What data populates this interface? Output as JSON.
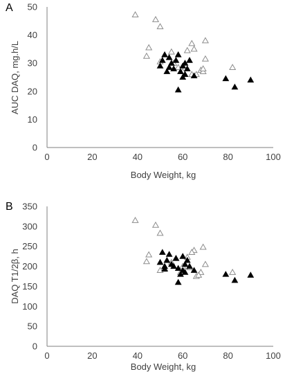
{
  "chart_data": [
    {
      "type": "scatter",
      "panel_label": "A",
      "xlabel": "Body Weight, kg",
      "ylabel": "AUC DAQ, mg.h/L",
      "xlim": [
        0,
        100
      ],
      "ylim": [
        0,
        50
      ],
      "x_ticks": [
        "0",
        "20",
        "40",
        "60",
        "80",
        "100"
      ],
      "y_ticks": [
        "0",
        "10",
        "20",
        "30",
        "40",
        "50"
      ],
      "grid": false,
      "series": [
        {
          "marker": "open-triangle",
          "color": "#8c8c8c",
          "points": [
            [
              39,
              47.2
            ],
            [
              45,
              35.5
            ],
            [
              48,
              45.5
            ],
            [
              50,
              43
            ],
            [
              44,
              32.5
            ],
            [
              50,
              30.5
            ],
            [
              55,
              34
            ],
            [
              56,
              30
            ],
            [
              58,
              28.5
            ],
            [
              60,
              27
            ],
            [
              62,
              34.5
            ],
            [
              64,
              37
            ],
            [
              65,
              35
            ],
            [
              66,
              26
            ],
            [
              68,
              27.5
            ],
            [
              69,
              27
            ],
            [
              70,
              31.5
            ],
            [
              70,
              38
            ],
            [
              82,
              28.5
            ],
            [
              64,
              26
            ],
            [
              69,
              28
            ]
          ]
        },
        {
          "marker": "filled-triangle",
          "color": "#000000",
          "points": [
            [
              50,
              29
            ],
            [
              51,
              31
            ],
            [
              52,
              33
            ],
            [
              53,
              27
            ],
            [
              54,
              32
            ],
            [
              55,
              30
            ],
            [
              56,
              28
            ],
            [
              57,
              31
            ],
            [
              58,
              33
            ],
            [
              58,
              20.5
            ],
            [
              59,
              27
            ],
            [
              60,
              25
            ],
            [
              60,
              29
            ],
            [
              61,
              30
            ],
            [
              62,
              28
            ],
            [
              63,
              31
            ],
            [
              65,
              25.5
            ],
            [
              79,
              24.5
            ],
            [
              83,
              21.5
            ],
            [
              90,
              24
            ],
            [
              54,
              28.5
            ],
            [
              61,
              26
            ]
          ]
        }
      ]
    },
    {
      "type": "scatter",
      "panel_label": "B",
      "xlabel": "Body Weight, kg",
      "ylabel": "DAQ T1/2β, h",
      "xlim": [
        0,
        100
      ],
      "ylim": [
        0,
        350
      ],
      "x_ticks": [
        "0",
        "20",
        "40",
        "60",
        "80",
        "100"
      ],
      "y_ticks": [
        "0",
        "50",
        "100",
        "150",
        "200",
        "250",
        "300",
        "350"
      ],
      "grid": false,
      "series": [
        {
          "marker": "open-triangle",
          "color": "#8c8c8c",
          "points": [
            [
              39,
              315
            ],
            [
              44,
              212
            ],
            [
              45,
              229
            ],
            [
              48,
              303
            ],
            [
              50,
              283
            ],
            [
              50,
              190
            ],
            [
              52,
              195
            ],
            [
              55,
              210
            ],
            [
              57,
              220
            ],
            [
              59,
              185
            ],
            [
              60,
              200
            ],
            [
              62,
              223
            ],
            [
              63,
              197
            ],
            [
              65,
              240
            ],
            [
              66,
              175
            ],
            [
              68,
              185
            ],
            [
              69,
              248
            ],
            [
              70,
              205
            ],
            [
              82,
              185
            ],
            [
              64,
              235
            ],
            [
              67,
              178
            ]
          ]
        },
        {
          "marker": "filled-triangle",
          "color": "#000000",
          "points": [
            [
              50,
              210
            ],
            [
              51,
              235
            ],
            [
              52,
              200
            ],
            [
              53,
              215
            ],
            [
              54,
              230
            ],
            [
              55,
              205
            ],
            [
              56,
              200
            ],
            [
              57,
              220
            ],
            [
              58,
              160
            ],
            [
              58,
              195
            ],
            [
              59,
              180
            ],
            [
              60,
              225
            ],
            [
              60,
              190
            ],
            [
              61,
              205
            ],
            [
              62,
              215
            ],
            [
              63,
              200
            ],
            [
              65,
              190
            ],
            [
              79,
              180
            ],
            [
              83,
              165
            ],
            [
              90,
              178
            ],
            [
              52,
              193
            ],
            [
              61,
              185
            ]
          ]
        }
      ]
    }
  ]
}
